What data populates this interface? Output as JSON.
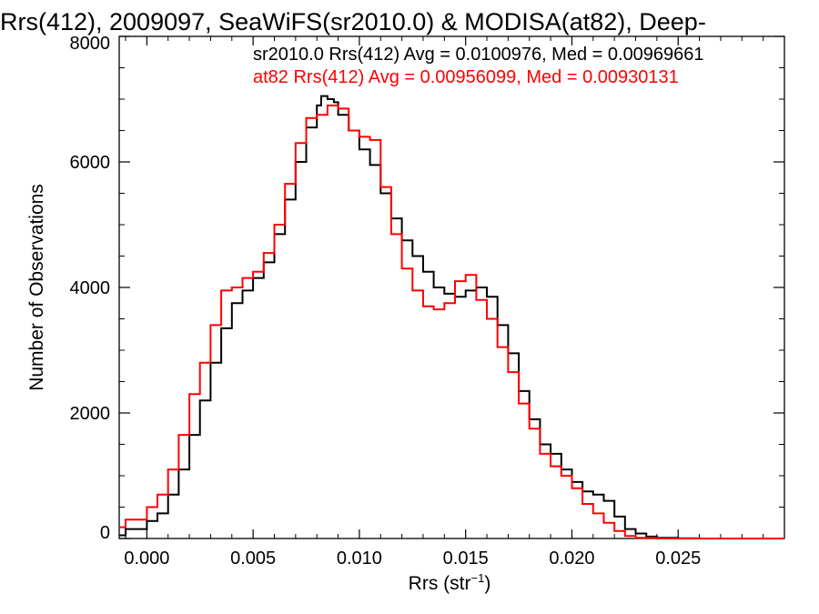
{
  "chart_data": {
    "type": "line",
    "style": "histogram-step",
    "title": "Rrs(412), 2009097, SeaWiFS(sr2010.0) & MODISA(at82), Deep-",
    "xlabel": "Rrs (str",
    "xlabel_sup": "−1",
    "xlabel_close": ")",
    "ylabel": "Number of Observations",
    "xlim": [
      -0.0013,
      0.03
    ],
    "ylim": [
      0,
      8000
    ],
    "xticks": [
      0.0,
      0.005,
      0.01,
      0.015,
      0.02,
      0.025
    ],
    "xtick_labels": [
      "0.000",
      "0.005",
      "0.010",
      "0.015",
      "0.020",
      "0.025"
    ],
    "yticks": [
      0,
      2000,
      4000,
      6000,
      8000
    ],
    "ytick_labels": [
      "0",
      "2000",
      "4000",
      "6000",
      "8000"
    ],
    "grid": false,
    "legend_position": "top-right",
    "series": [
      {
        "name": "sr2010.0 Rrs(412) Avg = 0.0100976, Med = 0.00969661",
        "color": "#000000",
        "x": [
          -0.0013,
          -0.001,
          0.0,
          0.0005,
          0.001,
          0.0015,
          0.002,
          0.0025,
          0.003,
          0.0035,
          0.004,
          0.0045,
          0.005,
          0.0055,
          0.006,
          0.0065,
          0.007,
          0.0075,
          0.008,
          0.0082,
          0.0085,
          0.0088,
          0.009,
          0.0095,
          0.01,
          0.0105,
          0.011,
          0.0115,
          0.012,
          0.0125,
          0.013,
          0.0135,
          0.014,
          0.0145,
          0.015,
          0.0155,
          0.016,
          0.0165,
          0.017,
          0.0175,
          0.018,
          0.0185,
          0.019,
          0.0195,
          0.02,
          0.0205,
          0.021,
          0.0215,
          0.022,
          0.0225,
          0.023,
          0.0235,
          0.024,
          0.025,
          0.026,
          0.027,
          0.028,
          0.03
        ],
        "y": [
          50,
          150,
          280,
          400,
          700,
          1100,
          1650,
          2200,
          2800,
          3350,
          3750,
          3950,
          4150,
          4400,
          4850,
          5400,
          6000,
          6550,
          6900,
          7050,
          7000,
          6950,
          6750,
          6500,
          6200,
          5950,
          5500,
          5100,
          4750,
          4500,
          4250,
          4000,
          3900,
          3850,
          3950,
          4000,
          3850,
          3400,
          2950,
          2350,
          1900,
          1500,
          1350,
          1100,
          900,
          750,
          700,
          600,
          350,
          150,
          80,
          30,
          10,
          5,
          0,
          0,
          0,
          0
        ]
      },
      {
        "name": "at82 Rrs(412) Avg = 0.00956099, Med = 0.00930131",
        "color": "#ff0000",
        "x": [
          -0.0013,
          -0.001,
          0.0,
          0.0005,
          0.001,
          0.0015,
          0.002,
          0.0025,
          0.003,
          0.0035,
          0.004,
          0.0045,
          0.005,
          0.0055,
          0.006,
          0.0065,
          0.007,
          0.0075,
          0.008,
          0.0085,
          0.009,
          0.0095,
          0.01,
          0.0105,
          0.011,
          0.0115,
          0.012,
          0.0125,
          0.013,
          0.0135,
          0.014,
          0.0145,
          0.015,
          0.0155,
          0.016,
          0.0165,
          0.017,
          0.0175,
          0.018,
          0.0185,
          0.019,
          0.0195,
          0.02,
          0.0205,
          0.021,
          0.0215,
          0.022,
          0.0225,
          0.023,
          0.024,
          0.025,
          0.03
        ],
        "y": [
          180,
          300,
          500,
          700,
          1100,
          1650,
          2300,
          2800,
          3400,
          3950,
          4000,
          4150,
          4250,
          4550,
          5000,
          5650,
          6300,
          6700,
          6750,
          6900,
          6850,
          6500,
          6400,
          6350,
          5600,
          4850,
          4300,
          3950,
          3700,
          3650,
          3750,
          4100,
          4200,
          3800,
          3500,
          3050,
          2650,
          2150,
          1750,
          1350,
          1150,
          1000,
          800,
          550,
          400,
          250,
          120,
          40,
          10,
          0,
          0,
          0
        ]
      }
    ]
  }
}
